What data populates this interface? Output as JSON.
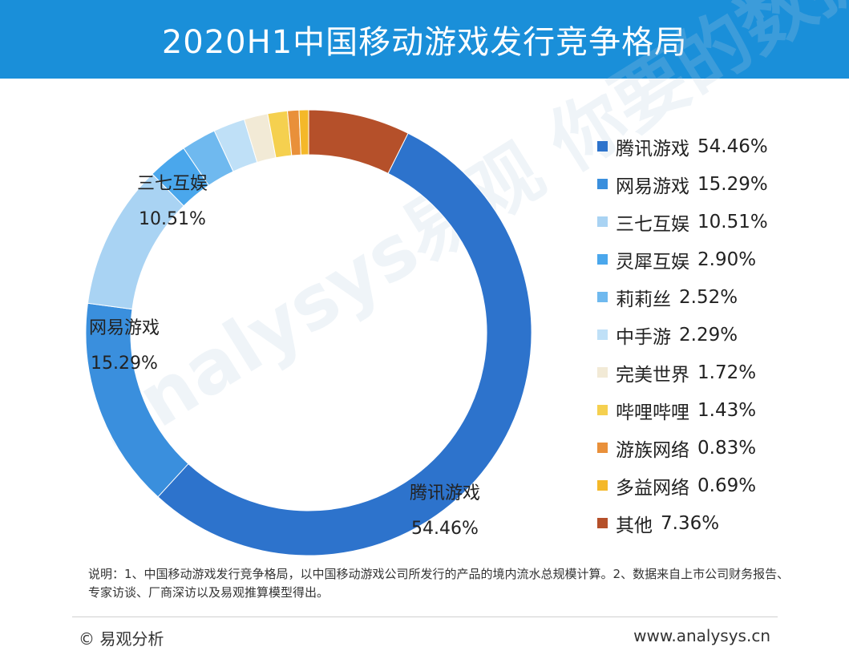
{
  "header": {
    "title": "2020H1中国移动游戏发行竞争格局"
  },
  "watermark": "analysys易观 你要的数据分析",
  "chart_data": {
    "type": "pie",
    "donut": true,
    "legend_position": "right",
    "slices": [
      {
        "name": "腾讯游戏",
        "value": 54.46,
        "label": "54.46%",
        "color": "#2d73cc"
      },
      {
        "name": "网易游戏",
        "value": 15.29,
        "label": "15.29%",
        "color": "#3a8fdd"
      },
      {
        "name": "三七互娱",
        "value": 10.51,
        "label": "10.51%",
        "color": "#a9d3f3"
      },
      {
        "name": "灵犀互娱",
        "value": 2.9,
        "label": "2.90%",
        "color": "#4aa7ec"
      },
      {
        "name": "莉莉丝",
        "value": 2.52,
        "label": "2.52%",
        "color": "#6fb9ef"
      },
      {
        "name": "中手游",
        "value": 2.29,
        "label": "2.29%",
        "color": "#bfe0f7"
      },
      {
        "name": "完美世界",
        "value": 1.72,
        "label": "1.72%",
        "color": "#f2ead6"
      },
      {
        "name": "哔哩哔哩",
        "value": 1.43,
        "label": "1.43%",
        "color": "#f5d04f"
      },
      {
        "name": "游族网络",
        "value": 0.83,
        "label": "0.83%",
        "color": "#e9903a"
      },
      {
        "name": "多益网络",
        "value": 0.69,
        "label": "0.69%",
        "color": "#f4b829"
      },
      {
        "name": "其他",
        "value": 7.36,
        "label": "7.36%",
        "color": "#b5502a"
      }
    ]
  },
  "note": "说明：1、中国移动游戏发行竞争格局，以中国移动游戏公司所发行的产品的境内流水总规模计算。2、数据来自上市公司财务报告、专家访谈、厂商深访以及易观推算模型得出。",
  "footer": {
    "copyright": "© 易观分析",
    "website": "www.analysys.cn"
  }
}
